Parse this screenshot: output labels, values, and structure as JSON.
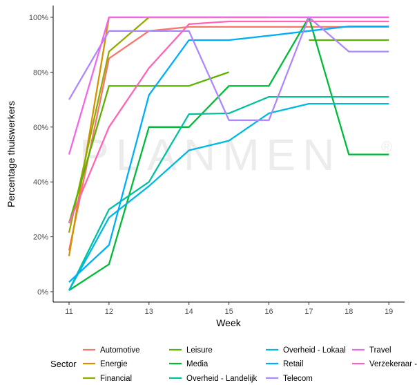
{
  "chart_data": {
    "type": "line",
    "xlabel": "Week",
    "ylabel": "Percentage thuiswerkers",
    "x": [
      11,
      12,
      13,
      14,
      15,
      16,
      17,
      18,
      19
    ],
    "x_ticks": [
      "11",
      "12",
      "13",
      "14",
      "15",
      "16",
      "17",
      "18",
      "19"
    ],
    "ylim": [
      0,
      100
    ],
    "y_ticks": [
      {
        "value": 0,
        "label": "0%"
      },
      {
        "value": 20,
        "label": "20%"
      },
      {
        "value": 40,
        "label": "40%"
      },
      {
        "value": 60,
        "label": "60%"
      },
      {
        "value": 80,
        "label": "80%"
      },
      {
        "value": 100,
        "label": "100%"
      }
    ],
    "grid": false,
    "legend": {
      "position": "bottom",
      "title": "Sector"
    },
    "watermark": "PLANMEN",
    "watermark_mark": "®",
    "series": [
      {
        "name": "Automotive",
        "color": "#F8766D",
        "values": [
          15,
          85,
          95,
          96.5,
          96.5,
          96.5,
          96.5,
          96.5,
          96.5
        ]
      },
      {
        "name": "Energie",
        "color": "#D39200",
        "values": [
          13,
          100,
          100,
          100,
          100,
          100,
          100,
          100,
          100
        ]
      },
      {
        "name": "Financial",
        "color": "#93AA00",
        "values": [
          21.5,
          87.5,
          100,
          100,
          100,
          100,
          null,
          null,
          null
        ]
      },
      {
        "name": "Leisure",
        "color": "#5BB300",
        "values": [
          25,
          75,
          75,
          75,
          80,
          null,
          91.7,
          91.7,
          91.7
        ]
      },
      {
        "name": "Media",
        "color": "#00BA38",
        "values": [
          0.5,
          10,
          60,
          60,
          75,
          75,
          100,
          50,
          50
        ]
      },
      {
        "name": "Overheid - Landelijk",
        "color": "#00C19F",
        "values": [
          0.5,
          30,
          40,
          64.7,
          65,
          71,
          71,
          71,
          71
        ]
      },
      {
        "name": "Overheid - Lokaal",
        "color": "#00B9E3",
        "values": [
          0.5,
          27,
          38.5,
          51.5,
          55,
          65,
          68.5,
          68.5,
          68.5
        ]
      },
      {
        "name": "Retail",
        "color": "#00ADFA",
        "values": [
          3.5,
          17,
          71.7,
          91.7,
          91.7,
          93.3,
          95,
          96.7,
          96.7
        ]
      },
      {
        "name": "Telecom",
        "color": "#AE87FF",
        "values": [
          70,
          95,
          95,
          95,
          62.5,
          62.5,
          100,
          87.5,
          87.5
        ]
      },
      {
        "name": "Travel",
        "color": "#EF67EB",
        "values": [
          50,
          100,
          100,
          100,
          100,
          100,
          100,
          100,
          100
        ]
      },
      {
        "name": "Verzekeraar - Zorg",
        "color": "#FF63B6",
        "values": [
          25,
          60,
          81.5,
          97.5,
          98.5,
          98.5,
          98.5,
          98.5,
          98.5
        ]
      }
    ]
  }
}
